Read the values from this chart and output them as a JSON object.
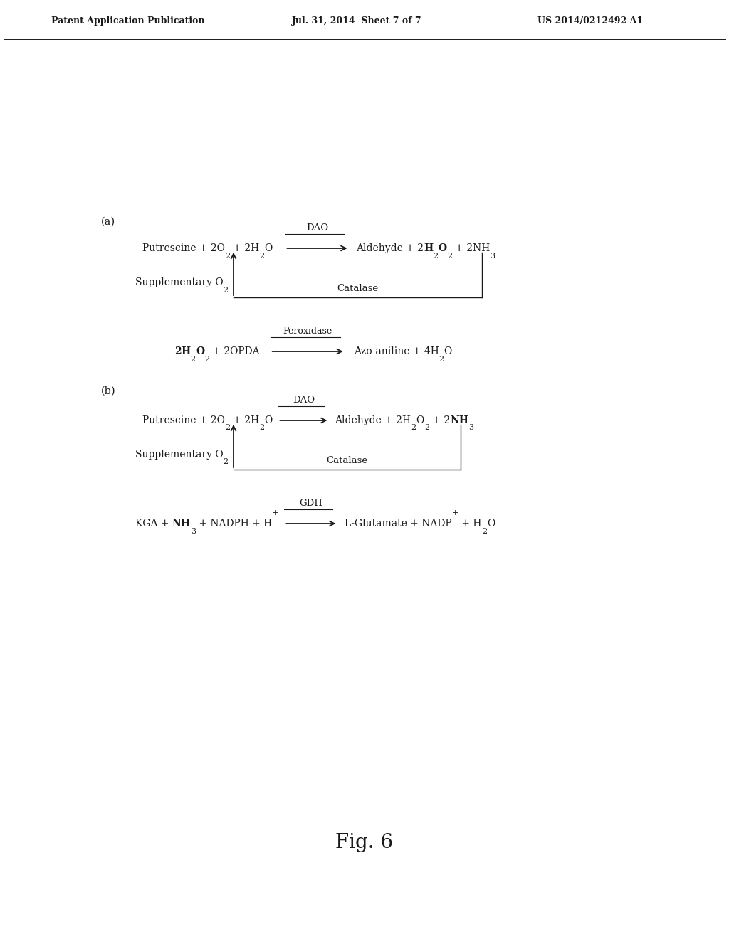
{
  "header_left": "Patent Application Publication",
  "header_mid": "Jul. 31, 2014  Sheet 7 of 7",
  "header_right": "US 2014/0212492 A1",
  "fig_label": "Fig. 6",
  "bg_color": "#ffffff",
  "text_color": "#1a1a1a",
  "section_a_label": "(a)",
  "section_b_label": "(b)",
  "fig_width": 10.24,
  "fig_height": 13.2,
  "dpi": 100
}
